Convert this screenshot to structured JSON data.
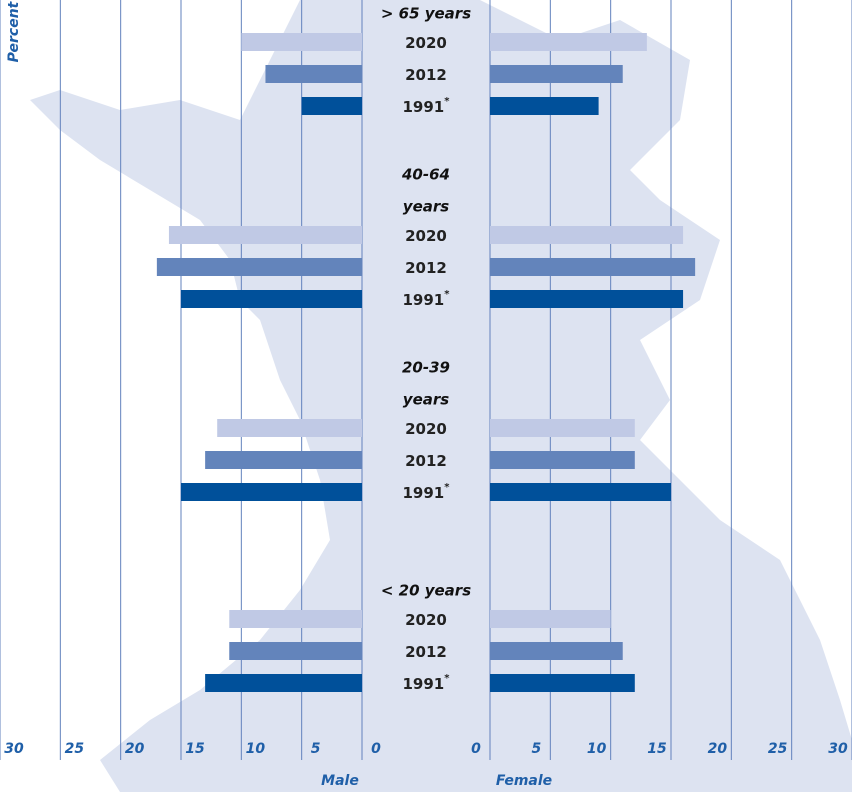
{
  "chart_data": {
    "type": "butterfly",
    "ylabel": "Percent",
    "left_label": "Male",
    "right_label": "Female",
    "xlim": [
      0,
      30
    ],
    "xticks": [
      0,
      5,
      10,
      15,
      20,
      25,
      30
    ],
    "grid": true,
    "groups": [
      {
        "label_lines": [
          "> 65 years"
        ]
      },
      {
        "label_lines": [
          "40-64",
          "years"
        ]
      },
      {
        "label_lines": [
          "20-39",
          "years"
        ]
      },
      {
        "label_lines": [
          "< 20 years"
        ]
      }
    ],
    "series": [
      {
        "name": "2020",
        "color": "#c0c9e5",
        "male": [
          10,
          16,
          12,
          11
        ],
        "female": [
          13,
          16,
          12,
          10
        ]
      },
      {
        "name": "2012",
        "color": "#6384bb",
        "male": [
          8,
          17,
          13,
          11
        ],
        "female": [
          11,
          17,
          12,
          11
        ]
      },
      {
        "name": "1991",
        "note": "*",
        "color": "#00509a",
        "male": [
          5,
          15,
          15,
          13
        ],
        "female": [
          9,
          16,
          15,
          12
        ]
      }
    ]
  }
}
